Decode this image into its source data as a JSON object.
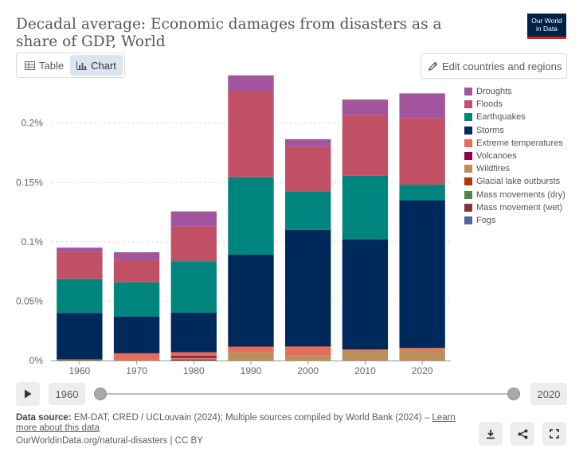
{
  "header": {
    "title": "Decadal average: Economic damages from disasters as a share of GDP, World",
    "logo_line1": "Our World",
    "logo_line2": "in Data"
  },
  "tabs": [
    {
      "label": "Table",
      "icon": "table-icon",
      "active": false
    },
    {
      "label": "Chart",
      "icon": "chart-icon",
      "active": true
    }
  ],
  "edit_button": {
    "label": "Edit countries and regions",
    "icon": "pencil-icon"
  },
  "chart_data": {
    "type": "bar",
    "stacked": true,
    "title": "Decadal average: Economic damages from disasters as a share of GDP, World",
    "categories": [
      "1960",
      "1970",
      "1980",
      "1990",
      "2000",
      "2010",
      "2020"
    ],
    "ylim": [
      0,
      0.24
    ],
    "yticks": [
      0,
      0.05,
      0.1,
      0.15,
      0.2
    ],
    "ytick_labels": [
      "0%",
      "0.05%",
      "0.1%",
      "0.15%",
      "0.2%"
    ],
    "grid": "horizontal dashed",
    "legend_position": "right",
    "series": [
      {
        "name": "Fogs",
        "color": "#4c6a9c",
        "values": [
          0,
          0,
          0,
          0,
          0,
          0,
          0
        ]
      },
      {
        "name": "Mass movement (wet)",
        "color": "#883039",
        "values": [
          0.0002,
          0.0001,
          0.0008,
          0.0001,
          0.0001,
          0.0001,
          0.0001
        ]
      },
      {
        "name": "Mass movements (dry)",
        "color": "#578145",
        "values": [
          0.0005,
          0.0001,
          0.0002,
          0.0001,
          0,
          0,
          0
        ]
      },
      {
        "name": "Glacial lake outbursts",
        "color": "#b13507",
        "values": [
          0,
          0,
          0,
          0,
          0,
          0,
          0
        ]
      },
      {
        "name": "Wildfires",
        "color": "#bc8e5a",
        "values": [
          0,
          0.0001,
          0.0012,
          0.007,
          0.0045,
          0.0083,
          0.009
        ]
      },
      {
        "name": "Volcanoes",
        "color": "#970046",
        "values": [
          0,
          0,
          0.0015,
          0,
          0,
          0,
          0
        ]
      },
      {
        "name": "Extreme temperatures",
        "color": "#e56e5a",
        "values": [
          0.0003,
          0.0058,
          0.0032,
          0.0045,
          0.0072,
          0.0009,
          0.0016
        ]
      },
      {
        "name": "Storms",
        "color": "#00295b",
        "values": [
          0.039,
          0.0308,
          0.0333,
          0.0774,
          0.0982,
          0.0928,
          0.1243
        ]
      },
      {
        "name": "Earthquakes",
        "color": "#00847e",
        "values": [
          0.0285,
          0.029,
          0.0435,
          0.0652,
          0.0324,
          0.0535,
          0.0131
        ]
      },
      {
        "name": "Floods",
        "color": "#c15065",
        "values": [
          0.0231,
          0.0185,
          0.0295,
          0.0726,
          0.0377,
          0.0514,
          0.0562
        ]
      },
      {
        "name": "Droughts",
        "color": "#a2559c",
        "values": [
          0.0035,
          0.0068,
          0.0124,
          0.0133,
          0.0063,
          0.0128,
          0.0207
        ]
      }
    ]
  },
  "legend": [
    {
      "label": "Droughts",
      "color": "#a2559c"
    },
    {
      "label": "Floods",
      "color": "#c15065"
    },
    {
      "label": "Earthquakes",
      "color": "#00847e"
    },
    {
      "label": "Storms",
      "color": "#00295b"
    },
    {
      "label": "Extreme temperatures",
      "color": "#e56e5a"
    },
    {
      "label": "Volcanoes",
      "color": "#970046"
    },
    {
      "label": "Wildfires",
      "color": "#bc8e5a"
    },
    {
      "label": "Glacial lake outbursts",
      "color": "#b13507"
    },
    {
      "label": "Mass movements (dry)",
      "color": "#578145"
    },
    {
      "label": "Mass movement (wet)",
      "color": "#883039"
    },
    {
      "label": "Fogs",
      "color": "#4c6a9c"
    }
  ],
  "timeline": {
    "start_year": "1960",
    "end_year": "2020",
    "play_icon": "play-icon"
  },
  "footer": {
    "source_label": "Data source:",
    "source_text": " EM-DAT, CRED / UCLouvain (2024); Multiple sources compiled by World Bank (2024) – ",
    "learn_more": "Learn more about this data",
    "url": "OurWorldinData.org/natural-disasters | CC BY"
  },
  "actions": [
    {
      "name": "download-button",
      "icon": "download-icon"
    },
    {
      "name": "share-button",
      "icon": "share-icon"
    },
    {
      "name": "fullscreen-button",
      "icon": "fullscreen-icon"
    }
  ]
}
